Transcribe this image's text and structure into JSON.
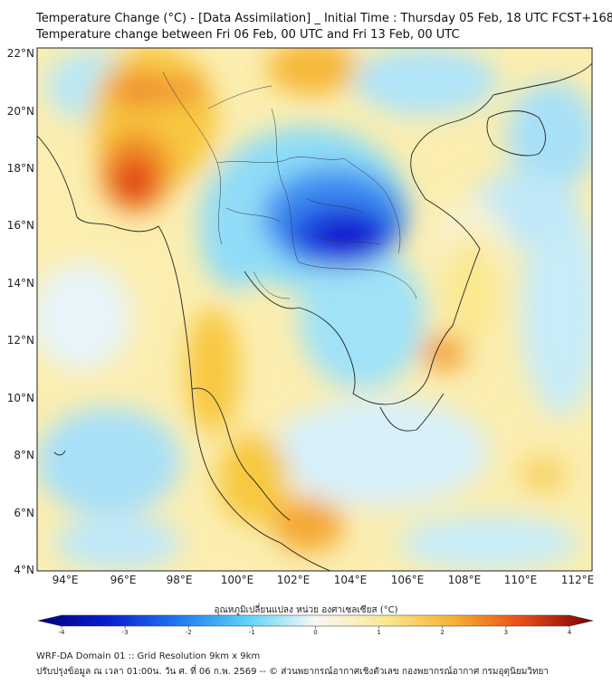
{
  "header": {
    "title_line1": "Temperature Change (°C) - [Data Assimilation] _ Initial Time : Thursday 05 Feb, 18 UTC FCST+168",
    "title_line2": "Temperature change between Fri 06 Feb, 00 UTC and Fri 13 Feb, 00 UTC"
  },
  "map": {
    "lat_labels": [
      "22°N",
      "20°N",
      "18°N",
      "16°N",
      "14°N",
      "12°N",
      "10°N",
      "8°N",
      "6°N",
      "4°N"
    ],
    "lon_labels": [
      "94°E",
      "96°E",
      "98°E",
      "100°E",
      "102°E",
      "104°E",
      "106°E",
      "108°E",
      "110°E",
      "112°E"
    ],
    "colors": {
      "strong_cold": "#1414d2",
      "cold": "#3c8cf0",
      "cool": "#8cdcf8",
      "neutral": "#f8f8f8",
      "mild_warm": "#fbeaa0",
      "warm": "#f8c840",
      "hot": "#f08c28",
      "very_hot": "#e03c14"
    }
  },
  "colorbar": {
    "title": "อุณหภูมิเปลี่ยนแปลง หน่วย องศาเซลเซียส (°C)",
    "ticks": [
      "-4",
      "-3",
      "-2",
      "-1",
      "0",
      "1",
      "2",
      "3",
      "4"
    ],
    "min": -4,
    "max": 4
  },
  "footer": {
    "line1": "WRF-DA Domain 01 :: Grid Resolution 9km x 9km",
    "line2": "ปรับปรุงข้อมูล ณ เวลา 01:00น. วัน ศ. ที่ 06 ก.พ. 2569 -- © ส่วนพยากรณ์อากาศเชิงตัวเลข กองพยากรณ์อากาศ กรมอุตุนิยมวิทยา"
  }
}
